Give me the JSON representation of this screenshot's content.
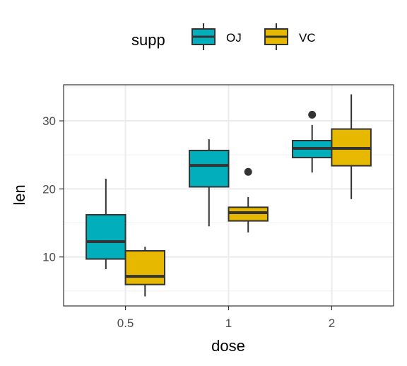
{
  "chart_data": {
    "type": "box",
    "xlabel": "dose",
    "ylabel": "len",
    "categories": [
      "0.5",
      "1",
      "2"
    ],
    "ylim": [
      2.8,
      35.3
    ],
    "yticks": [
      10,
      20,
      30
    ],
    "grid": true,
    "legend": {
      "title": "supp",
      "position": "top"
    },
    "series": [
      {
        "name": "OJ",
        "color": "#00afbb",
        "boxes": [
          {
            "min": 8.2,
            "q1": 9.7,
            "median": 12.25,
            "q3": 16.2,
            "max": 21.5,
            "outliers": []
          },
          {
            "min": 14.5,
            "q1": 20.3,
            "median": 23.45,
            "q3": 25.65,
            "max": 27.3,
            "outliers": []
          },
          {
            "min": 22.4,
            "q1": 24.6,
            "median": 25.95,
            "q3": 27.1,
            "max": 29.4,
            "outliers": [
              30.9
            ]
          }
        ]
      },
      {
        "name": "VC",
        "color": "#e7b800",
        "boxes": [
          {
            "min": 4.2,
            "q1": 5.95,
            "median": 7.15,
            "q3": 10.9,
            "max": 11.5,
            "outliers": []
          },
          {
            "min": 13.6,
            "q1": 15.3,
            "median": 16.5,
            "q3": 17.3,
            "max": 18.8,
            "outliers": [
              22.5
            ]
          },
          {
            "min": 18.5,
            "q1": 23.4,
            "median": 25.95,
            "q3": 28.8,
            "max": 33.9,
            "outliers": []
          }
        ]
      }
    ]
  }
}
